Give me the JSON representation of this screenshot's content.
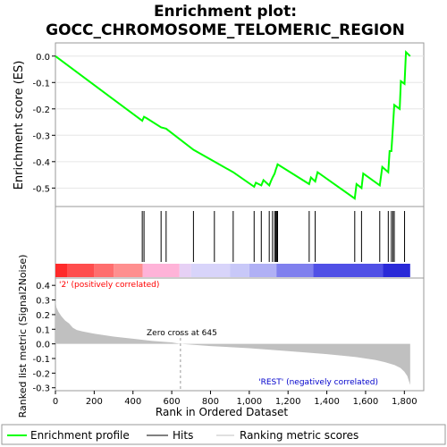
{
  "chart_data": {
    "type": "line",
    "title_line1": "Enrichment plot:",
    "title_line2": "GOCC_CHROMOSOME_TELOMERIC_REGION",
    "ylabel_top": "Enrichment score (ES)",
    "ylabel_bottom": "Ranked list metric (Signal2Noise)",
    "xlabel": "Rank in Ordered Dataset",
    "xlim": [
      0,
      1900
    ],
    "es_ylim": [
      -0.57,
      0.05
    ],
    "metric_ylim": [
      -0.32,
      0.45
    ],
    "x_ticks": [
      "0",
      "200",
      "400",
      "600",
      "800",
      "1,000",
      "1,200",
      "1,400",
      "1,600",
      "1,800"
    ],
    "x_tick_values": [
      0,
      200,
      400,
      600,
      800,
      1000,
      1200,
      1400,
      1600,
      1800
    ],
    "es_ticks": [
      "0.0",
      "-0.1",
      "-0.2",
      "-0.3",
      "-0.4",
      "-0.5"
    ],
    "es_tick_values": [
      0.0,
      -0.1,
      -0.2,
      -0.3,
      -0.4,
      -0.5
    ],
    "metric_ticks": [
      "0.4",
      "0.3",
      "0.2",
      "0.1",
      "0.0",
      "-0.1",
      "-0.2",
      "-0.3"
    ],
    "metric_tick_values": [
      0.4,
      0.3,
      0.2,
      0.1,
      0.0,
      -0.1,
      -0.2,
      -0.3
    ],
    "es_curve": {
      "x": [
        0,
        448,
        457,
        470,
        545,
        571,
        712,
        820,
        917,
        1025,
        1034,
        1062,
        1073,
        1103,
        1111,
        1120,
        1131,
        1137,
        1142,
        1146,
        1309,
        1318,
        1340,
        1352,
        1544,
        1553,
        1579,
        1588,
        1673,
        1686,
        1717,
        1724,
        1733,
        1741,
        1748,
        1776,
        1782,
        1801,
        1808,
        1830
      ],
      "y": [
        0.0,
        -0.245,
        -0.23,
        -0.235,
        -0.27,
        -0.275,
        -0.355,
        -0.4,
        -0.44,
        -0.495,
        -0.48,
        -0.49,
        -0.47,
        -0.49,
        -0.475,
        -0.46,
        -0.445,
        -0.43,
        -0.42,
        -0.41,
        -0.485,
        -0.46,
        -0.475,
        -0.44,
        -0.54,
        -0.485,
        -0.5,
        -0.445,
        -0.49,
        -0.42,
        -0.44,
        -0.36,
        -0.36,
        -0.27,
        -0.185,
        -0.2,
        -0.095,
        -0.105,
        0.015,
        0.0
      ]
    },
    "hits": [
      448,
      457,
      545,
      571,
      712,
      820,
      917,
      1025,
      1062,
      1103,
      1120,
      1131,
      1137,
      1142,
      1146,
      1309,
      1340,
      1544,
      1579,
      1673,
      1717,
      1733,
      1741,
      1748,
      1801
    ],
    "heatmap_colors": [
      "#ff2a2a",
      "#ff4d4d",
      "#ff6e6e",
      "#ff8f8f",
      "#ffb3d8",
      "#e6d0f5",
      "#d8d4fa",
      "#c8c8f8",
      "#b0b0f5",
      "#8080ee",
      "#5050e6",
      "#2a2ad8"
    ],
    "heatmap_bounds": [
      0,
      60,
      200,
      300,
      450,
      640,
      700,
      900,
      1000,
      1140,
      1330,
      1690,
      1830
    ],
    "metric_curve": {
      "x": [
        0,
        5,
        15,
        30,
        50,
        70,
        90,
        110,
        140,
        200,
        300,
        400,
        500,
        600,
        645,
        800,
        1000,
        1200,
        1400,
        1550,
        1650,
        1700,
        1750,
        1780,
        1800,
        1815,
        1825,
        1830
      ],
      "y": [
        0.3,
        0.25,
        0.22,
        0.19,
        0.16,
        0.14,
        0.11,
        0.095,
        0.085,
        0.07,
        0.05,
        0.035,
        0.02,
        0.01,
        0.0,
        -0.015,
        -0.03,
        -0.05,
        -0.07,
        -0.09,
        -0.11,
        -0.125,
        -0.145,
        -0.165,
        -0.19,
        -0.22,
        -0.26,
        -0.28
      ]
    },
    "zero_cross_label": "Zero cross at 645",
    "zero_cross_x": 645,
    "pos_label": "'2' (positively correlated)",
    "neg_label": "'REST' (negatively correlated)",
    "legend": [
      "Enrichment profile",
      "Hits",
      "Ranking metric scores"
    ],
    "colors": {
      "es_line": "#00ff00",
      "hits": "#000000",
      "metric_fill": "#c0c0c0",
      "pos_text": "#ff0000",
      "neg_text": "#0000cc",
      "zero_cross": "#999999"
    }
  }
}
